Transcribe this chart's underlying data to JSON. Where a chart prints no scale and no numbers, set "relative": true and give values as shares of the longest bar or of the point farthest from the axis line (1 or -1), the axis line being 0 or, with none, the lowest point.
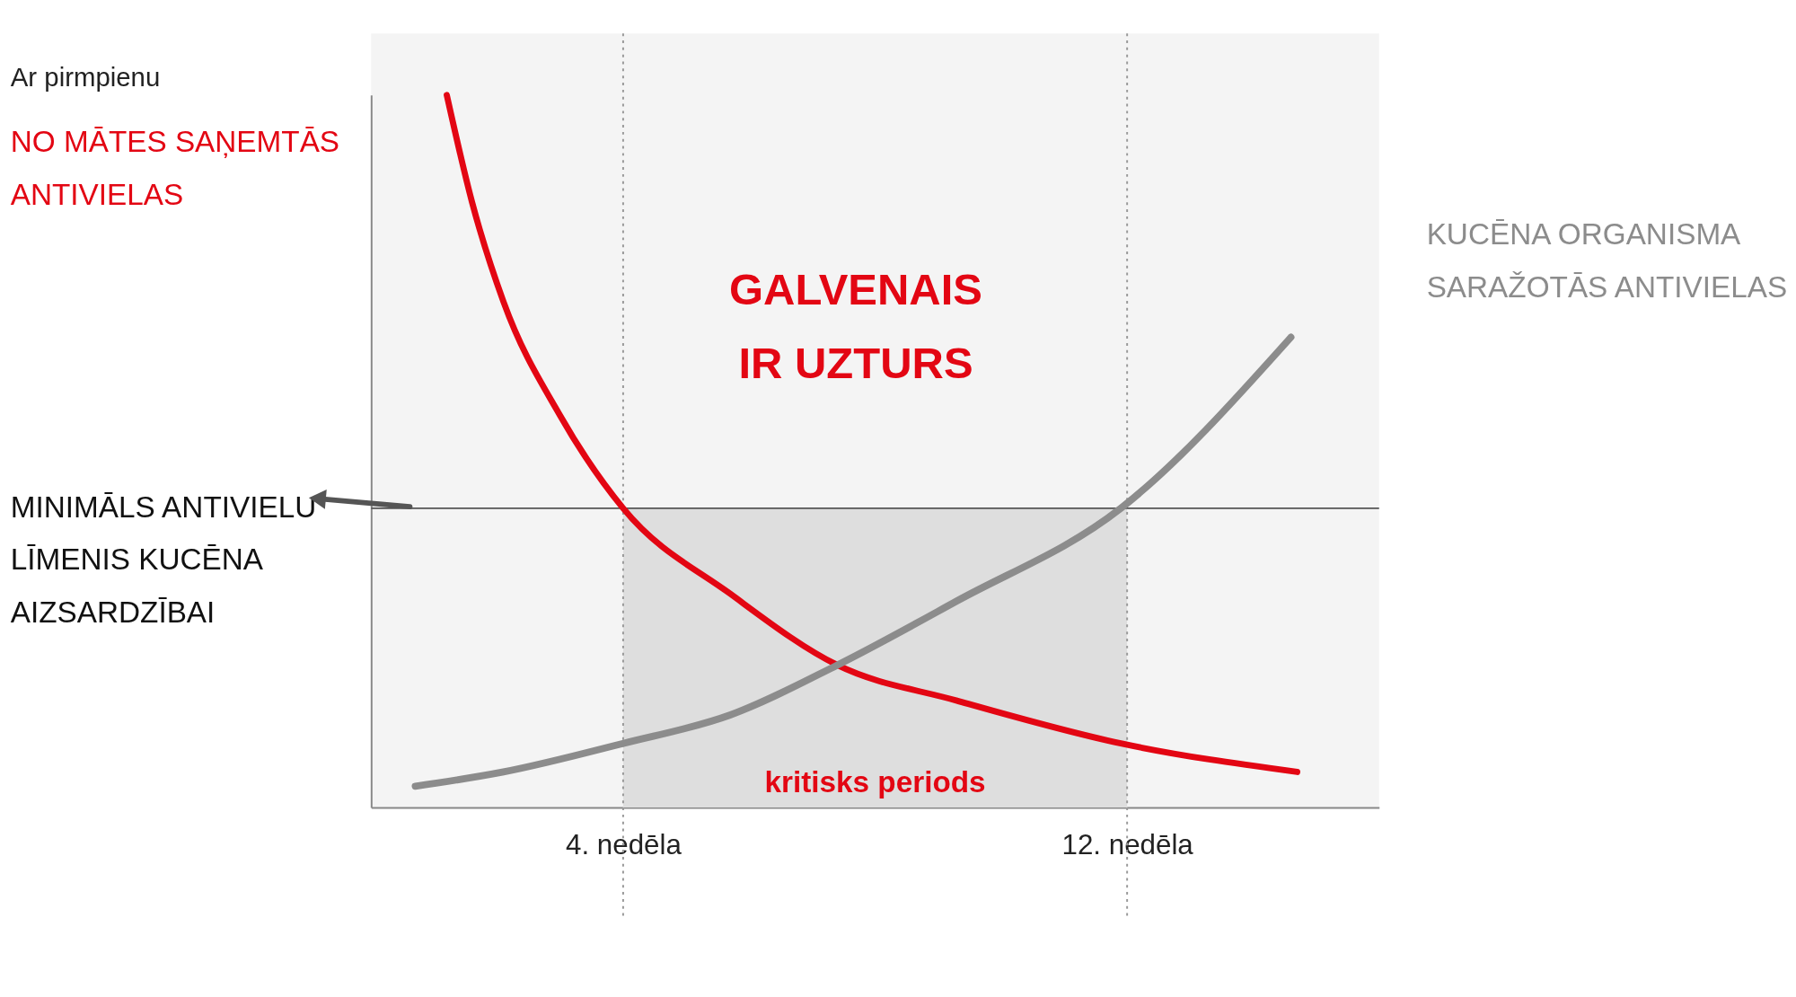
{
  "chart_data": {
    "type": "line",
    "relative": true,
    "xlim": [
      0,
      16
    ],
    "xticks": [
      {
        "value": 4,
        "label": "4. nedēla"
      },
      {
        "value": 12,
        "label": "12. nedēla"
      }
    ],
    "series": [
      {
        "name": "NO MĀTES SAŅEMTĀS ANTIVIELAS",
        "color": "#e30613",
        "x": [
          1.2,
          1.6,
          2.1,
          3.0,
          4.0,
          5.7,
          7.4,
          9.3,
          11.9,
          14.7
        ],
        "values": [
          1.0,
          0.85,
          0.71,
          0.55,
          0.42,
          0.3,
          0.2,
          0.15,
          0.09,
          0.05
        ]
      },
      {
        "name": "KUCĒNA ORGANISMA SARAŽOTĀS ANTIVIELAS",
        "color": "#8c8c8c",
        "x": [
          0.7,
          2.1,
          4.0,
          5.7,
          7.4,
          9.3,
          11.9,
          14.6
        ],
        "values": [
          0.03,
          0.05,
          0.09,
          0.13,
          0.2,
          0.29,
          0.42,
          0.66
        ]
      }
    ],
    "ref_lines": [
      {
        "axis": "y",
        "value": 0.42,
        "label": "MINIMĀLS ANTIVIELU LĪMENIS KUCĒNA AIZSARDZĪBAI",
        "color": "#555555",
        "line_style": "solid"
      },
      {
        "axis": "x",
        "value": 4,
        "label": null,
        "color": "#999999",
        "line_style": "dotted"
      },
      {
        "axis": "x",
        "value": 12,
        "label": null,
        "color": "#999999",
        "line_style": "dotted"
      }
    ],
    "bands": [
      {
        "axis": "x",
        "from": 4,
        "to": 12,
        "label": "kritisks periods",
        "color": "#dedede"
      }
    ],
    "annotations": [
      "Ar pirmpienu",
      "GALVENAIS IR UZTURS"
    ],
    "grid": false,
    "line_style": "solid"
  }
}
